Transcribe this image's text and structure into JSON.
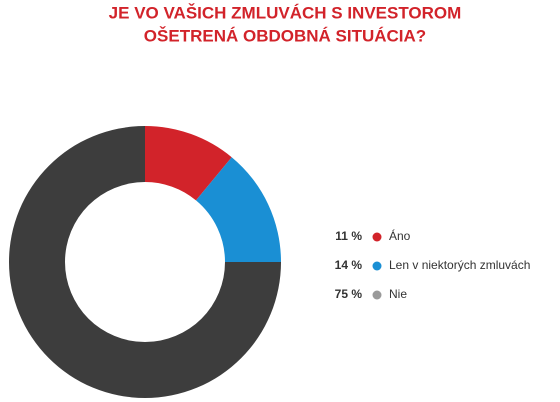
{
  "chart_data": {
    "type": "donut",
    "title": [
      "JE VO VAŠICH ZMLUVÁCH S INVESTOROM",
      "OŠETRENÁ OBDOBNÁ SITUÁCIA?"
    ],
    "categories": [
      "Áno",
      "Len v niektorých zmluvách",
      "Nie"
    ],
    "values": [
      11,
      14,
      75
    ],
    "value_labels": [
      "11 %",
      "14 %",
      "75 %"
    ],
    "colors": [
      "#d2232a",
      "#1a8fd4",
      "#3d3d3d"
    ],
    "legend_colors": [
      "#d2232a",
      "#1a8fd4",
      "#9a9a9a"
    ]
  }
}
